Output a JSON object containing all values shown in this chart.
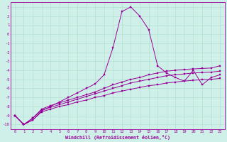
{
  "xlabel": "Windchill (Refroidissement éolien,°C)",
  "xlim": [
    -0.5,
    23.5
  ],
  "ylim": [
    -10.5,
    3.5
  ],
  "yticks": [
    3,
    2,
    1,
    0,
    -1,
    -2,
    -3,
    -4,
    -5,
    -6,
    -7,
    -8,
    -9,
    -10
  ],
  "xticks": [
    0,
    1,
    2,
    3,
    4,
    5,
    6,
    7,
    8,
    9,
    10,
    11,
    12,
    13,
    14,
    15,
    16,
    17,
    18,
    19,
    20,
    21,
    22,
    23
  ],
  "bg_color": "#cff0e8",
  "line_color": "#990099",
  "series_peak_x": [
    0,
    1,
    2,
    3,
    4,
    5,
    6,
    7,
    8,
    9,
    10,
    11,
    12,
    13,
    14,
    15,
    16,
    17,
    18,
    19,
    20,
    21,
    22,
    23
  ],
  "series_peak_y": [
    -9.0,
    -10.0,
    -9.5,
    -8.5,
    -8.0,
    -7.5,
    -7.0,
    -6.5,
    -6.0,
    -5.5,
    -4.5,
    -1.5,
    2.5,
    3.0,
    2.0,
    0.5,
    -3.5,
    -4.3,
    -4.8,
    -5.2,
    -4.0,
    -5.6,
    -4.8,
    -4.5
  ],
  "series_upper_x": [
    0,
    1,
    2,
    3,
    4,
    5,
    6,
    7,
    8,
    9,
    10,
    11,
    12,
    13,
    14,
    15,
    16,
    17,
    18,
    19,
    20,
    21,
    22,
    23
  ],
  "series_upper_y": [
    -9.0,
    -10.0,
    -9.3,
    -8.3,
    -7.9,
    -7.6,
    -7.3,
    -7.0,
    -6.7,
    -6.4,
    -6.0,
    -5.6,
    -5.3,
    -5.0,
    -4.8,
    -4.5,
    -4.3,
    -4.1,
    -4.0,
    -3.9,
    -3.85,
    -3.8,
    -3.75,
    -3.5
  ],
  "series_mid_x": [
    0,
    1,
    2,
    3,
    4,
    5,
    6,
    7,
    8,
    9,
    10,
    11,
    12,
    13,
    14,
    15,
    16,
    17,
    18,
    19,
    20,
    21,
    22,
    23
  ],
  "series_mid_y": [
    -9.0,
    -10.0,
    -9.3,
    -8.4,
    -8.1,
    -7.8,
    -7.5,
    -7.2,
    -6.9,
    -6.6,
    -6.3,
    -6.0,
    -5.7,
    -5.4,
    -5.2,
    -5.0,
    -4.8,
    -4.6,
    -4.5,
    -4.4,
    -4.3,
    -4.25,
    -4.2,
    -4.1
  ],
  "series_lower_x": [
    0,
    1,
    2,
    3,
    4,
    5,
    6,
    7,
    8,
    9,
    10,
    11,
    12,
    13,
    14,
    15,
    16,
    17,
    18,
    19,
    20,
    21,
    22,
    23
  ],
  "series_lower_y": [
    -9.0,
    -10.0,
    -9.5,
    -8.6,
    -8.3,
    -8.0,
    -7.8,
    -7.5,
    -7.3,
    -7.0,
    -6.8,
    -6.5,
    -6.3,
    -6.1,
    -5.9,
    -5.7,
    -5.6,
    -5.4,
    -5.3,
    -5.2,
    -5.1,
    -5.05,
    -5.0,
    -4.9
  ]
}
